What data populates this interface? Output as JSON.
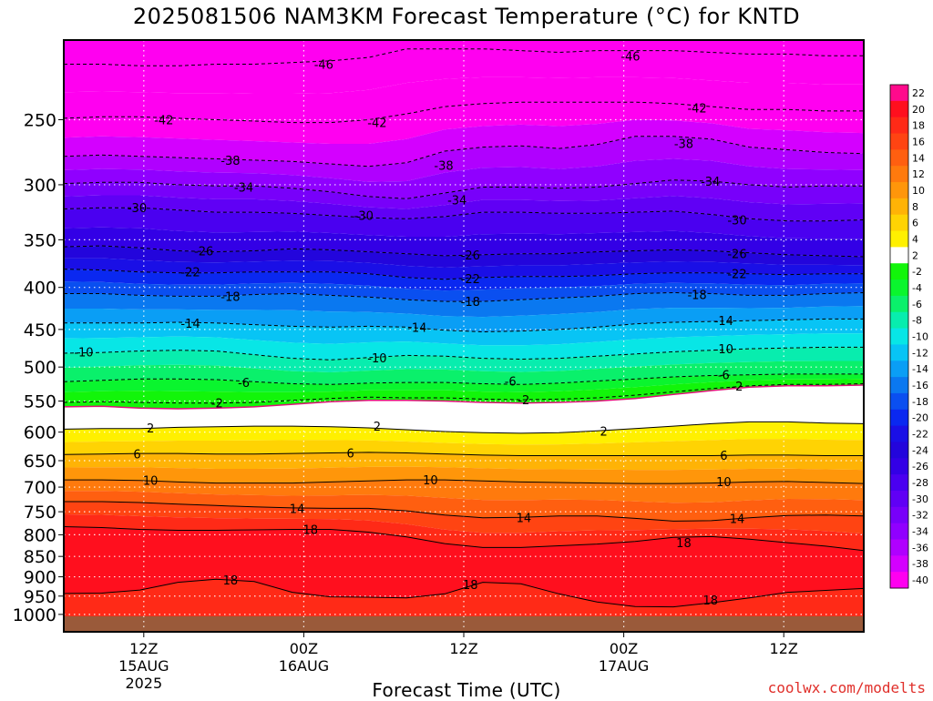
{
  "title": "2025081506 NAM3KM Forecast Temperature (°C) for KNTD",
  "credit": "coolwx.com/modelts",
  "chart_data": {
    "type": "heatmap",
    "title": "2025081506 NAM3KM Forecast Temperature (°C) for KNTD",
    "xlabel": "Forecast Time (UTC)",
    "ylabel": "",
    "x_range_hours": [
      0,
      60
    ],
    "y_scale": "log",
    "y_range_hPa": [
      1050,
      200
    ],
    "y_ticks": [
      250,
      300,
      350,
      400,
      450,
      500,
      550,
      600,
      650,
      700,
      750,
      800,
      850,
      900,
      950,
      1000
    ],
    "x_ticks": [
      {
        "hour": 6,
        "lines": [
          "12Z",
          "15AUG",
          "2025"
        ]
      },
      {
        "hour": 18,
        "lines": [
          "00Z",
          "16AUG"
        ]
      },
      {
        "hour": 30,
        "lines": [
          "12Z",
          ""
        ]
      },
      {
        "hour": 42,
        "lines": [
          "00Z",
          "17AUG"
        ]
      },
      {
        "hour": 54,
        "lines": [
          "12Z",
          ""
        ]
      }
    ],
    "colorbar": {
      "levels": [
        22,
        20,
        18,
        16,
        14,
        12,
        10,
        8,
        6,
        4,
        2,
        -2,
        -4,
        -6,
        -8,
        -10,
        -12,
        -14,
        -16,
        -18,
        -20,
        -22,
        -24,
        -26,
        -28,
        -30,
        -32,
        -34,
        -36,
        -38,
        -40
      ],
      "colors": [
        "#ff0a8c",
        "#ff0f1e",
        "#ff2a17",
        "#ff4412",
        "#ff5f10",
        "#ff7a0d",
        "#ff960a",
        "#ffb306",
        "#ffd303",
        "#fff000",
        "#ffffff",
        "#12f50a",
        "#0af52e",
        "#0af06b",
        "#08edae",
        "#08e6e6",
        "#08c4f5",
        "#0a9ef5",
        "#0a78f0",
        "#0a4ff0",
        "#0a28f0",
        "#1a0fe6",
        "#2305dc",
        "#3300e6",
        "#4a00f0",
        "#6000f5",
        "#7800fa",
        "#9000ff",
        "#b000ff",
        "#d400ff",
        "#ff00f0"
      ]
    },
    "freezing_level_hPa": [
      559,
      558,
      561,
      562,
      561,
      559,
      555,
      551,
      549,
      549,
      550,
      552,
      553,
      552,
      550,
      546,
      540,
      534,
      529,
      527,
      527,
      526
    ],
    "isotherms": [
      {
        "value": -46,
        "p": [
          214,
          214,
          215,
          215,
          214,
          214,
          213,
          212,
          210,
          205,
          205,
          205,
          206,
          207,
          206,
          206,
          206,
          207,
          208,
          208,
          209,
          209
        ]
      },
      {
        "value": -42,
        "p": [
          249,
          248,
          248,
          249,
          250,
          251,
          252,
          252,
          250,
          246,
          241,
          239,
          238,
          238,
          238,
          238,
          239,
          241,
          243,
          243,
          244,
          244
        ]
      },
      {
        "value": -38,
        "p": [
          277,
          276,
          277,
          278,
          279,
          280,
          281,
          283,
          285,
          282,
          273,
          270,
          269,
          271,
          268,
          262,
          262,
          264,
          270,
          272,
          274,
          275
        ]
      },
      {
        "value": -34,
        "p": [
          299,
          298,
          298,
          300,
          301,
          301,
          303,
          306,
          310,
          312,
          307,
          302,
          302,
          303,
          302,
          299,
          296,
          297,
          300,
          302,
          301,
          301
        ]
      },
      {
        "value": -30,
        "p": [
          321,
          320,
          320,
          322,
          324,
          324,
          325,
          327,
          329,
          330,
          328,
          324,
          324,
          325,
          325,
          324,
          323,
          326,
          330,
          332,
          332,
          331
        ]
      },
      {
        "value": -26,
        "p": [
          357,
          356,
          358,
          361,
          362,
          361,
          359,
          360,
          362,
          364,
          366,
          365,
          364,
          364,
          362,
          361,
          360,
          361,
          363,
          365,
          366,
          367
        ]
      },
      {
        "value": -22,
        "p": [
          380,
          381,
          383,
          384,
          384,
          383,
          383,
          383,
          385,
          389,
          391,
          389,
          388,
          388,
          387,
          385,
          384,
          384,
          385,
          386,
          385,
          385
        ]
      },
      {
        "value": -18,
        "p": [
          407,
          407,
          409,
          410,
          410,
          408,
          407,
          409,
          411,
          414,
          416,
          416,
          414,
          412,
          410,
          407,
          406,
          407,
          409,
          409,
          407,
          406
        ]
      },
      {
        "value": -14,
        "p": [
          442,
          442,
          442,
          441,
          442,
          444,
          446,
          447,
          446,
          447,
          451,
          453,
          452,
          450,
          447,
          443,
          441,
          440,
          439,
          438,
          437,
          437
        ]
      },
      {
        "value": -10,
        "p": [
          481,
          480,
          478,
          477,
          478,
          483,
          488,
          490,
          487,
          484,
          485,
          488,
          489,
          488,
          485,
          482,
          479,
          477,
          475,
          474,
          473,
          473
        ]
      },
      {
        "value": -6,
        "p": [
          521,
          519,
          517,
          517,
          518,
          521,
          524,
          525,
          523,
          522,
          522,
          524,
          525,
          523,
          520,
          517,
          514,
          512,
          511,
          510,
          510,
          510
        ]
      },
      {
        "value": -2,
        "p": [
          552,
          551,
          552,
          553,
          553,
          552,
          549,
          546,
          544,
          545,
          545,
          547,
          548,
          547,
          545,
          541,
          536,
          531,
          527,
          525,
          525,
          524
        ]
      },
      {
        "value": 2,
        "p": [
          595,
          594,
          594,
          592,
          591,
          590,
          590,
          591,
          593,
          596,
          599,
          601,
          602,
          601,
          598,
          594,
          590,
          586,
          583,
          583,
          585,
          586
        ]
      },
      {
        "value": 6,
        "p": [
          639,
          638,
          637,
          637,
          638,
          638,
          637,
          636,
          635,
          636,
          638,
          640,
          641,
          641,
          641,
          641,
          641,
          641,
          640,
          640,
          641,
          641
        ]
      },
      {
        "value": 10,
        "p": [
          686,
          686,
          687,
          690,
          692,
          692,
          692,
          690,
          688,
          686,
          686,
          688,
          690,
          691,
          692,
          693,
          693,
          692,
          690,
          689,
          691,
          693
        ]
      },
      {
        "value": 14,
        "p": [
          729,
          729,
          731,
          734,
          737,
          740,
          742,
          743,
          743,
          748,
          757,
          763,
          762,
          759,
          759,
          764,
          770,
          769,
          763,
          758,
          757,
          759
        ]
      },
      {
        "value": 18,
        "p": [
          782,
          784,
          788,
          790,
          790,
          789,
          788,
          788,
          794,
          805,
          820,
          829,
          829,
          825,
          821,
          815,
          806,
          804,
          810,
          818,
          826,
          836
        ]
      }
    ],
    "lower_isotherm_18": {
      "value": 18,
      "p": [
        943,
        942,
        934,
        914,
        906,
        912,
        940,
        952,
        953,
        955,
        944,
        914,
        918,
        944,
        966,
        978,
        979,
        968,
        955,
        940,
        935,
        930
      ]
    },
    "contour_labels": [
      {
        "value": -46,
        "hour": 19.5,
        "p": 214
      },
      {
        "value": -46,
        "hour": 42.5,
        "p": 209
      },
      {
        "value": -42,
        "hour": 7.5,
        "p": 250
      },
      {
        "value": -42,
        "hour": 23.5,
        "p": 252
      },
      {
        "value": -42,
        "hour": 47.5,
        "p": 242
      },
      {
        "value": -38,
        "hour": 12.5,
        "p": 280
      },
      {
        "value": -38,
        "hour": 28.5,
        "p": 284
      },
      {
        "value": -38,
        "hour": 46.5,
        "p": 267
      },
      {
        "value": -34,
        "hour": 13.5,
        "p": 302
      },
      {
        "value": -34,
        "hour": 29.5,
        "p": 313
      },
      {
        "value": -34,
        "hour": 48.5,
        "p": 297
      },
      {
        "value": -30,
        "hour": 5.5,
        "p": 320
      },
      {
        "value": -30,
        "hour": 22.5,
        "p": 327
      },
      {
        "value": -30,
        "hour": 50.5,
        "p": 331
      },
      {
        "value": -26,
        "hour": 10.5,
        "p": 361
      },
      {
        "value": -26,
        "hour": 30.5,
        "p": 365
      },
      {
        "value": -26,
        "hour": 50.5,
        "p": 364
      },
      {
        "value": -22,
        "hour": 9.5,
        "p": 383
      },
      {
        "value": -22,
        "hour": 30.5,
        "p": 390
      },
      {
        "value": -22,
        "hour": 50.5,
        "p": 385
      },
      {
        "value": -18,
        "hour": 12.5,
        "p": 410
      },
      {
        "value": -18,
        "hour": 30.5,
        "p": 416
      },
      {
        "value": -18,
        "hour": 47.5,
        "p": 408
      },
      {
        "value": -14,
        "hour": 9.5,
        "p": 442
      },
      {
        "value": -14,
        "hour": 26.5,
        "p": 447
      },
      {
        "value": -14,
        "hour": 49.5,
        "p": 439
      },
      {
        "value": -10,
        "hour": 1.5,
        "p": 479
      },
      {
        "value": -10,
        "hour": 23.5,
        "p": 487
      },
      {
        "value": -10,
        "hour": 49.5,
        "p": 475
      },
      {
        "value": -6,
        "hour": 13.5,
        "p": 522
      },
      {
        "value": -6,
        "hour": 33.5,
        "p": 520
      },
      {
        "value": -6,
        "hour": 49.5,
        "p": 511
      },
      {
        "value": -2,
        "hour": 11.5,
        "p": 553
      },
      {
        "value": -2,
        "hour": 34.5,
        "p": 548
      },
      {
        "value": -2,
        "hour": 50.5,
        "p": 527
      },
      {
        "value": 2,
        "hour": 6.5,
        "p": 593
      },
      {
        "value": 2,
        "hour": 23.5,
        "p": 590
      },
      {
        "value": 2,
        "hour": 40.5,
        "p": 598
      },
      {
        "value": 6,
        "hour": 5.5,
        "p": 638
      },
      {
        "value": 6,
        "hour": 21.5,
        "p": 636
      },
      {
        "value": 6,
        "hour": 49.5,
        "p": 640
      },
      {
        "value": 10,
        "hour": 6.5,
        "p": 687
      },
      {
        "value": 10,
        "hour": 27.5,
        "p": 686
      },
      {
        "value": 10,
        "hour": 49.5,
        "p": 689
      },
      {
        "value": 14,
        "hour": 17.5,
        "p": 743
      },
      {
        "value": 14,
        "hour": 34.5,
        "p": 762
      },
      {
        "value": 14,
        "hour": 50.5,
        "p": 764
      },
      {
        "value": 18,
        "hour": 18.5,
        "p": 788
      },
      {
        "value": 18,
        "hour": 46.5,
        "p": 818
      },
      {
        "value": 18,
        "hour": 12.5,
        "p": 908
      },
      {
        "value": 18,
        "hour": 30.5,
        "p": 920
      },
      {
        "value": 18,
        "hour": 48.5,
        "p": 960
      }
    ]
  }
}
